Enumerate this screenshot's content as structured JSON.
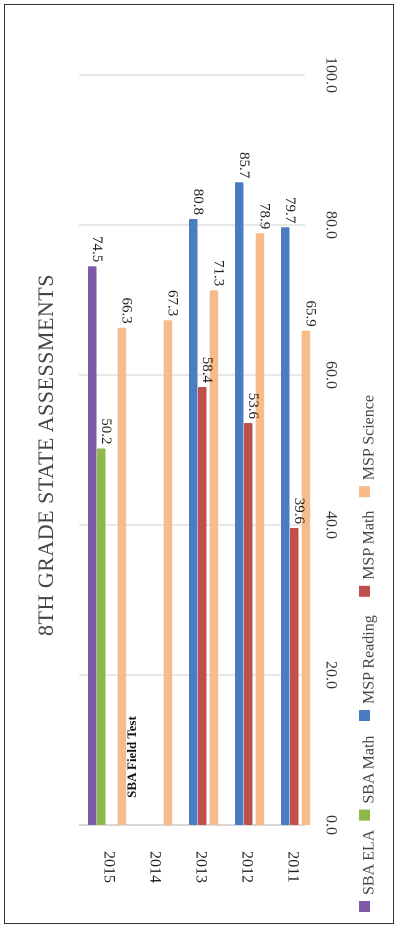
{
  "chart_data": {
    "type": "bar",
    "orientation": "horizontal",
    "title": "8TH GRADE STATE ASSESSMENTS",
    "categories": [
      "2015",
      "2014",
      "2013",
      "2012",
      "2011"
    ],
    "series": [
      {
        "name": "SBA ELA",
        "color": "#7E5BA6",
        "values": [
          74.5,
          null,
          null,
          null,
          null
        ]
      },
      {
        "name": "SBA Math",
        "color": "#8DB84A",
        "values": [
          50.2,
          null,
          null,
          null,
          null
        ]
      },
      {
        "name": "MSP Reading",
        "color": "#4A7CC2",
        "values": [
          null,
          null,
          80.8,
          85.7,
          79.7
        ]
      },
      {
        "name": "MSP Math",
        "color": "#C0504D",
        "values": [
          null,
          null,
          58.4,
          53.6,
          39.6
        ]
      },
      {
        "name": "MSP Science",
        "color": "#F7BC8A",
        "values": [
          66.3,
          67.3,
          71.3,
          78.9,
          65.9
        ]
      }
    ],
    "value_axis": {
      "min": 0,
      "max": 100,
      "ticks": [
        "0.0",
        "20.0",
        "40.0",
        "60.0",
        "80.0",
        "100.0"
      ]
    },
    "annotation": "SBA Field Test",
    "grid": true,
    "legend_position": "bottom"
  }
}
